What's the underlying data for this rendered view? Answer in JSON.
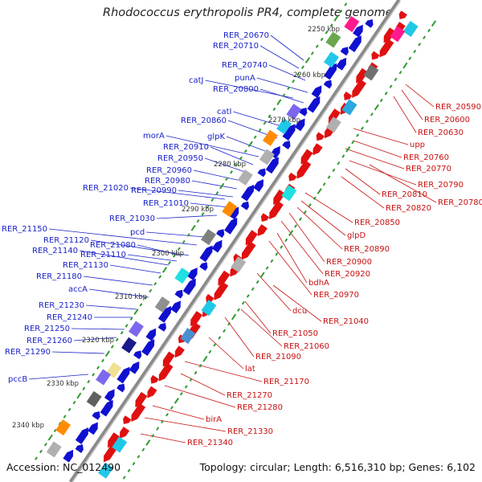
{
  "title": "Rhodococcus erythropolis PR4, complete genome",
  "footer": {
    "accession": "Accession: NC_012490",
    "summary": "Topology: circular; Length: 6,516,310 bp; Genes: 6,102"
  },
  "colors": {
    "backbone": "#8a8a8a",
    "tick": "#2f9a2f",
    "left_label": "#1a22c8",
    "right_label": "#c81010",
    "plus_strand": "#1010d0",
    "minus_strand": "#e01010"
  },
  "kbp_ticks": [
    "2250 kbp",
    "2260 kbp",
    "2270 kbp",
    "2280 kbp",
    "2290 kbp",
    "2300 kbp",
    "2310 kbp",
    "2320 kbp",
    "2330 kbp",
    "2340 kbp"
  ],
  "left_labels": [
    "RER_20670",
    "RER_20710",
    "RER_20740",
    "punA",
    "catJ",
    "RER_20800",
    "catI",
    "RER_20860",
    "glpK",
    "morA",
    "RER_20910",
    "RER_20950",
    "RER_20960",
    "RER_20980",
    "RER_21020",
    "RER_20990",
    "RER_21010",
    "RER_21030",
    "pcd",
    "RER_21150",
    "RER_21120",
    "RER_21080",
    "RER_21140",
    "RER_21110",
    "RER_21130",
    "RER_21180",
    "accA",
    "RER_21230",
    "RER_21240",
    "RER_21250",
    "RER_21260",
    "RER_21290",
    "pccB"
  ],
  "right_labels": [
    "RER_20590",
    "RER_20600",
    "RER_20630",
    "upp",
    "RER_20760",
    "RER_20770",
    "RER_20790",
    "RER_20810",
    "RER_20780",
    "RER_20820",
    "RER_20850",
    "glpD",
    "RER_20890",
    "RER_20900",
    "RER_20920",
    "bdhA",
    "RER_20970",
    "dcu",
    "RER_21040",
    "RER_21050",
    "RER_21060",
    "RER_21090",
    "lat",
    "RER_21170",
    "RER_21270",
    "RER_21280",
    "birA",
    "RER_21330",
    "RER_21340"
  ]
}
